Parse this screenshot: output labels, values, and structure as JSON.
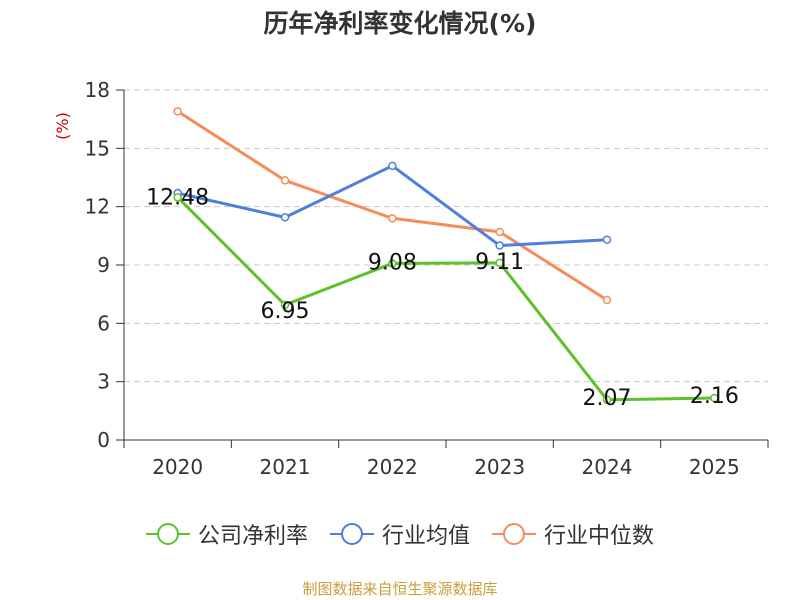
{
  "chart_data": {
    "type": "line",
    "title": "历年净利率变化情况(%)",
    "ylabel": "(%)",
    "categories": [
      "2020",
      "2021",
      "2022",
      "2023",
      "2024",
      "2025"
    ],
    "ylim": [
      0,
      18
    ],
    "yticks": [
      0,
      3,
      6,
      9,
      12,
      15,
      18
    ],
    "grid": true,
    "legend_position": "bottom",
    "series": [
      {
        "name": "公司净利率",
        "color": "#5ec02c",
        "values": [
          12.48,
          6.95,
          9.08,
          9.11,
          2.07,
          2.16
        ],
        "labels": [
          "12.48",
          "6.95",
          "9.08",
          "9.11",
          "2.07",
          "2.16"
        ]
      },
      {
        "name": "行业均值",
        "color": "#4e7fdc",
        "values": [
          12.7,
          11.45,
          14.1,
          10.0,
          10.3,
          null
        ]
      },
      {
        "name": "行业中位数",
        "color": "#f58c5a",
        "values": [
          16.9,
          13.35,
          11.4,
          10.7,
          7.2,
          null
        ]
      }
    ]
  },
  "source_note": "制图数据来自恒生聚源数据库"
}
